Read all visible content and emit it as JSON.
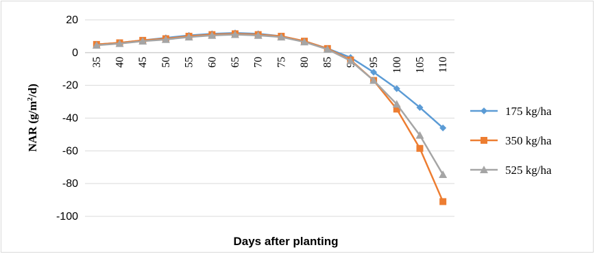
{
  "chart_data": {
    "type": "line",
    "xlabel": "Days after planting",
    "ylabel_parts": [
      "NAR (g/m",
      "2",
      "/d)"
    ],
    "categories": [
      "35",
      "40",
      "45",
      "50",
      "55",
      "60",
      "65",
      "70",
      "75",
      "80",
      "85",
      "90",
      "95",
      "100",
      "105",
      "110"
    ],
    "yticks": [
      "20",
      "0",
      "-20",
      "-40",
      "-60",
      "-80",
      "-100"
    ],
    "ylim": [
      -100,
      20
    ],
    "grid": true,
    "legend_position": "right",
    "series": [
      {
        "name": "175 kg/ha",
        "color": "#5b9bd5",
        "marker": "diamond",
        "values": [
          5,
          6,
          7.5,
          9,
          10.5,
          11.5,
          12,
          11.5,
          10,
          7,
          2.5,
          -3,
          -12,
          -22,
          -33.5,
          -46
        ]
      },
      {
        "name": "350 kg/ha",
        "color": "#ed7d31",
        "marker": "square",
        "values": [
          5,
          6,
          7.5,
          8.5,
          10,
          11,
          11.5,
          11,
          10,
          7,
          2.5,
          -4.5,
          -17,
          -34.5,
          -58.5,
          -91
        ]
      },
      {
        "name": "525 kg/ha",
        "color": "#a5a5a5",
        "marker": "triangle",
        "values": [
          4.5,
          5.5,
          7,
          8,
          9.5,
          10.5,
          11,
          10.5,
          9.5,
          6.5,
          2,
          -5,
          -17,
          -31.5,
          -50.5,
          -74.5
        ]
      }
    ]
  }
}
